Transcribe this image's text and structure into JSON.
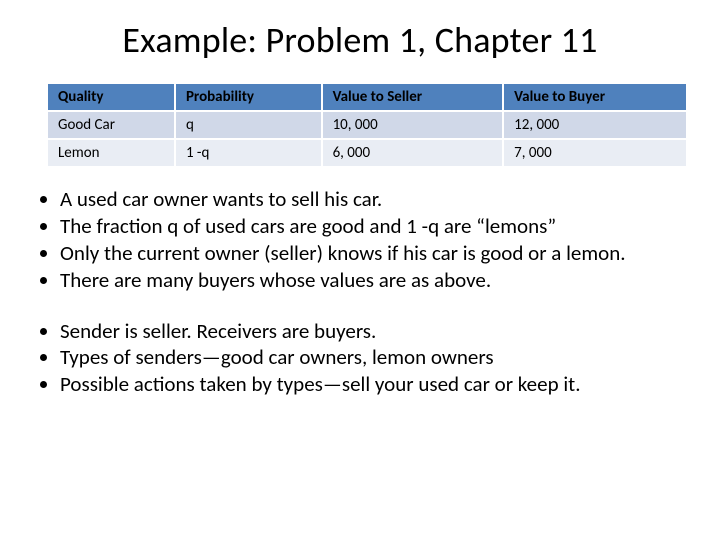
{
  "title": "Example: Problem 1, Chapter 11",
  "table": {
    "columns": [
      "Quality",
      "Probability",
      "Value to Seller",
      "Value to Buyer"
    ],
    "rows": [
      [
        "Good Car",
        "q",
        "10, 000",
        "12, 000"
      ],
      [
        "Lemon",
        "1 -q",
        "6, 000",
        "7, 000"
      ]
    ],
    "header_bg": "#4f81bd",
    "row_bg": [
      "#d0d8e8",
      "#e9edf4"
    ]
  },
  "bullets1": [
    "A used car owner wants to sell his car.",
    "The fraction q of used cars are good and 1 -q are “lemons”",
    "Only the current owner (seller) knows if his car is good or a lemon.",
    "There are many buyers whose values are as above."
  ],
  "bullets2": [
    "Sender  is seller.  Receivers are buyers.",
    "Types of senders—good car owners, lemon owners",
    "Possible actions taken by types—sell your used car or keep it."
  ]
}
